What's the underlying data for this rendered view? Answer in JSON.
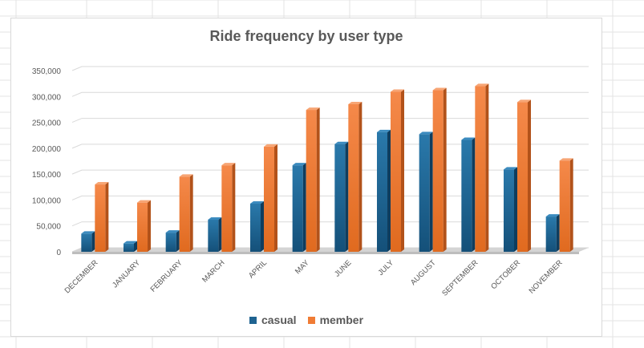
{
  "chart_data": {
    "type": "bar",
    "title": "Ride frequency by user type",
    "categories": [
      "DECEMBER",
      "JANUARY",
      "FEBRUARY",
      "MARCH",
      "APRIL",
      "MAY",
      "JUNE",
      "JULY",
      "AUGUST",
      "SEPTEMBER",
      "OCTOBER",
      "NOVEMBER"
    ],
    "series": [
      {
        "name": "casual",
        "color": "#1f6391",
        "values": [
          35000,
          16000,
          37000,
          62000,
          93000,
          167000,
          208000,
          231000,
          227000,
          216000,
          159000,
          68000
        ]
      },
      {
        "name": "member",
        "color": "#f07c35",
        "values": [
          130000,
          95000,
          145000,
          167000,
          203000,
          274000,
          285000,
          309000,
          312000,
          320000,
          289000,
          176000
        ]
      }
    ],
    "yticks": [
      "350,000",
      "300,000",
      "250,000",
      "200,000",
      "150,000",
      "100,000",
      "50,000",
      "0"
    ],
    "ylim": [
      0,
      350000
    ],
    "grid": true,
    "legend_position": "bottom"
  }
}
